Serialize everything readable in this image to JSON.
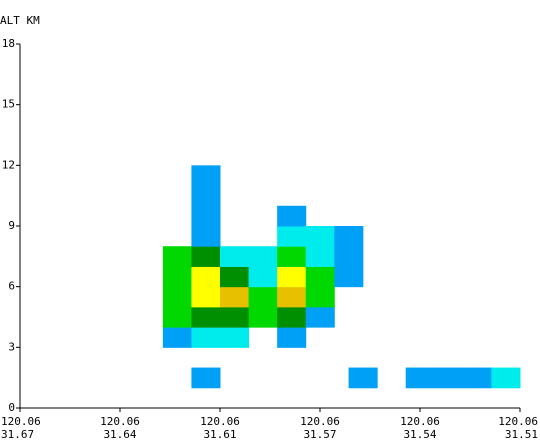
{
  "chart_data": {
    "type": "heatmap",
    "title": "",
    "ylabel": "ALT KM",
    "ylim": [
      0,
      18
    ],
    "y_ticks": [
      "0",
      "3",
      "6",
      "9",
      "12",
      "15",
      "18"
    ],
    "x_ticks": [
      {
        "lon": "120.06",
        "lat": "31.67"
      },
      {
        "lon": "120.06",
        "lat": "31.64"
      },
      {
        "lon": "120.06",
        "lat": "31.61"
      },
      {
        "lon": "120.06",
        "lat": "31.57"
      },
      {
        "lon": "120.06",
        "lat": "31.54"
      },
      {
        "lon": "120.06",
        "lat": "31.51"
      }
    ],
    "x_range": [
      0,
      35
    ],
    "legend": [
      "#00a0f6",
      "#00ecec",
      "#00d800",
      "#008f00",
      "#ffff00",
      "#e7c000"
    ],
    "cells": [
      {
        "x0": 12,
        "x1": 14,
        "y0": 1,
        "y1": 2,
        "level": 0
      },
      {
        "x0": 23,
        "x1": 25,
        "y0": 1,
        "y1": 2,
        "level": 0
      },
      {
        "x0": 27,
        "x1": 33,
        "y0": 1,
        "y1": 2,
        "level": 0
      },
      {
        "x0": 33,
        "x1": 35,
        "y0": 1,
        "y1": 2,
        "level": 1
      },
      {
        "x0": 10,
        "x1": 12,
        "y0": 3,
        "y1": 4,
        "level": 0
      },
      {
        "x0": 12,
        "x1": 16,
        "y0": 3,
        "y1": 4,
        "level": 1
      },
      {
        "x0": 18,
        "x1": 20,
        "y0": 3,
        "y1": 4,
        "level": 0
      },
      {
        "x0": 10,
        "x1": 12,
        "y0": 4,
        "y1": 5,
        "level": 2
      },
      {
        "x0": 12,
        "x1": 16,
        "y0": 4,
        "y1": 5,
        "level": 3
      },
      {
        "x0": 16,
        "x1": 18,
        "y0": 4,
        "y1": 5,
        "level": 2
      },
      {
        "x0": 18,
        "x1": 20,
        "y0": 4,
        "y1": 5,
        "level": 3
      },
      {
        "x0": 20,
        "x1": 22,
        "y0": 4,
        "y1": 5,
        "level": 0
      },
      {
        "x0": 10,
        "x1": 12,
        "y0": 5,
        "y1": 6,
        "level": 2
      },
      {
        "x0": 12,
        "x1": 14,
        "y0": 5,
        "y1": 6,
        "level": 4
      },
      {
        "x0": 14,
        "x1": 16,
        "y0": 5,
        "y1": 6,
        "level": 5
      },
      {
        "x0": 16,
        "x1": 18,
        "y0": 5,
        "y1": 6,
        "level": 2
      },
      {
        "x0": 18,
        "x1": 20,
        "y0": 5,
        "y1": 6,
        "level": 5
      },
      {
        "x0": 20,
        "x1": 22,
        "y0": 5,
        "y1": 6,
        "level": 2
      },
      {
        "x0": 10,
        "x1": 12,
        "y0": 6,
        "y1": 7,
        "level": 2
      },
      {
        "x0": 12,
        "x1": 14,
        "y0": 6,
        "y1": 7,
        "level": 4
      },
      {
        "x0": 14,
        "x1": 16,
        "y0": 6,
        "y1": 7,
        "level": 3
      },
      {
        "x0": 16,
        "x1": 18,
        "y0": 6,
        "y1": 7,
        "level": 1
      },
      {
        "x0": 18,
        "x1": 20,
        "y0": 6,
        "y1": 7,
        "level": 4
      },
      {
        "x0": 20,
        "x1": 22,
        "y0": 6,
        "y1": 7,
        "level": 2
      },
      {
        "x0": 22,
        "x1": 24,
        "y0": 6,
        "y1": 7,
        "level": 0
      },
      {
        "x0": 10,
        "x1": 12,
        "y0": 7,
        "y1": 8,
        "level": 2
      },
      {
        "x0": 12,
        "x1": 14,
        "y0": 7,
        "y1": 8,
        "level": 3
      },
      {
        "x0": 14,
        "x1": 18,
        "y0": 7,
        "y1": 8,
        "level": 1
      },
      {
        "x0": 18,
        "x1": 20,
        "y0": 7,
        "y1": 8,
        "level": 2
      },
      {
        "x0": 20,
        "x1": 22,
        "y0": 7,
        "y1": 8,
        "level": 1
      },
      {
        "x0": 22,
        "x1": 24,
        "y0": 7,
        "y1": 8,
        "level": 0
      },
      {
        "x0": 12,
        "x1": 14,
        "y0": 8,
        "y1": 12,
        "level": 0
      },
      {
        "x0": 18,
        "x1": 22,
        "y0": 8,
        "y1": 9,
        "level": 1
      },
      {
        "x0": 22,
        "x1": 24,
        "y0": 8,
        "y1": 9,
        "level": 0
      },
      {
        "x0": 18,
        "x1": 20,
        "y0": 9,
        "y1": 10,
        "level": 0
      }
    ]
  }
}
